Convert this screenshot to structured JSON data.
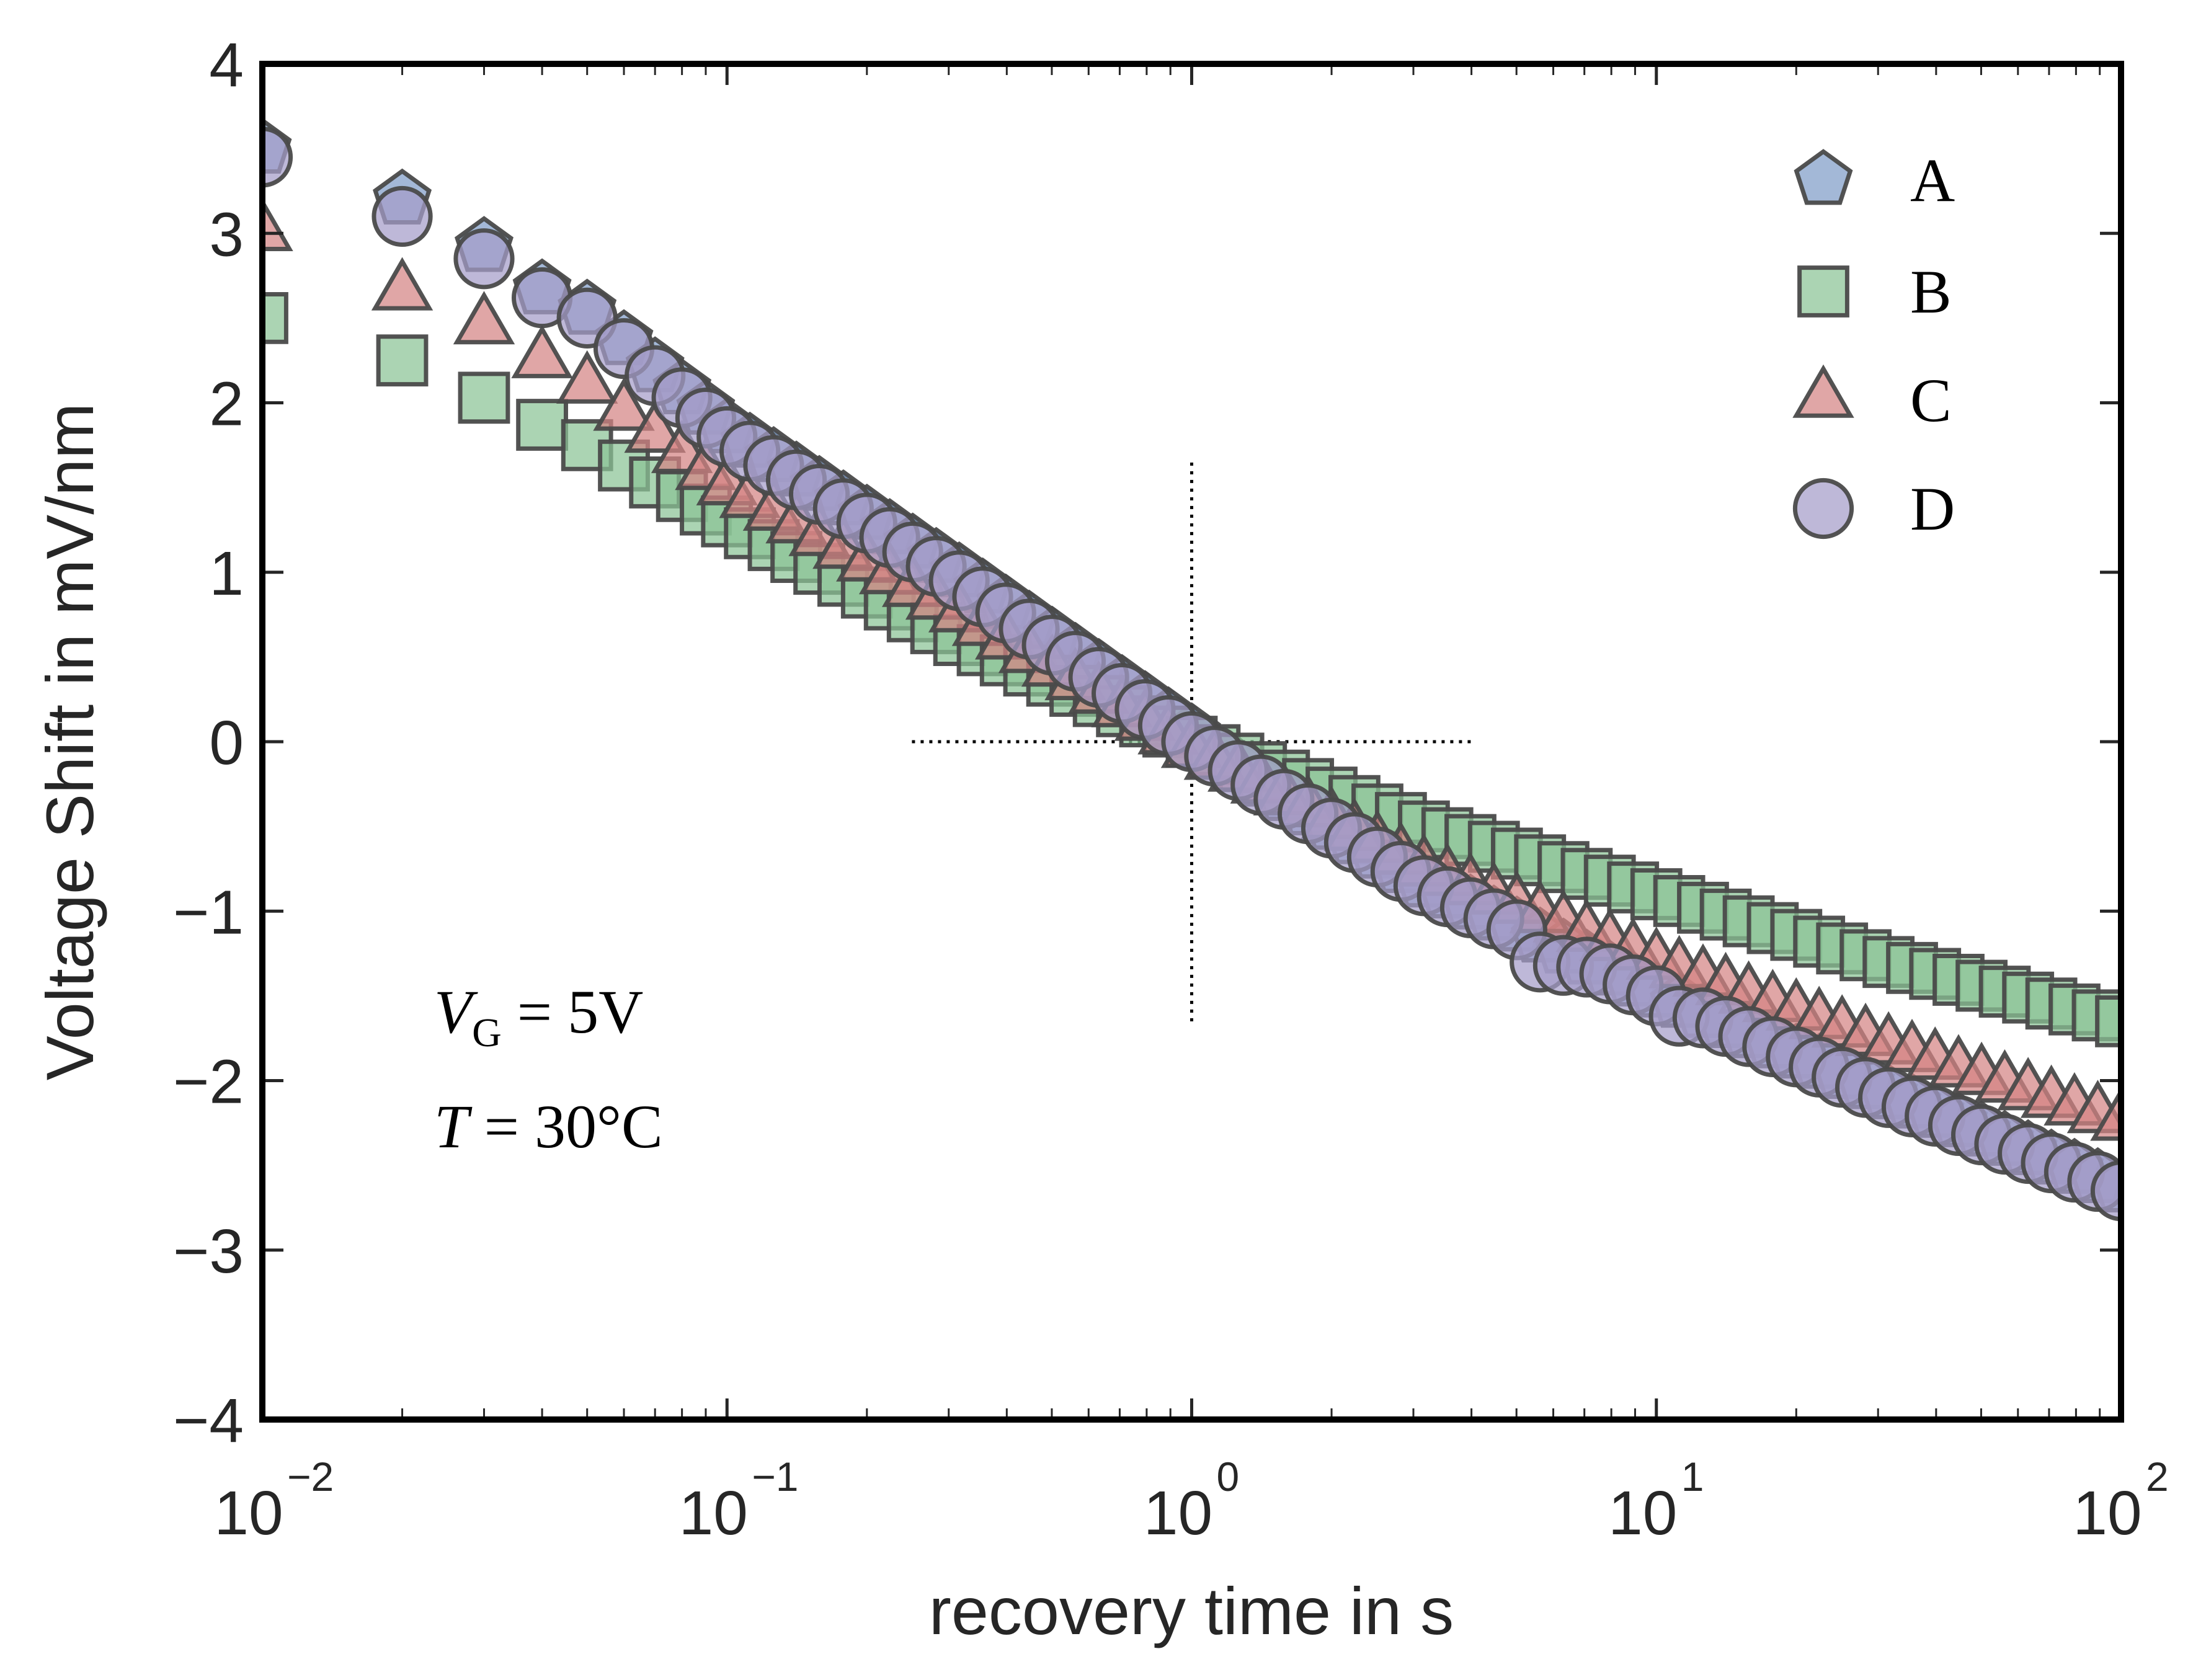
{
  "chart_data": {
    "type": "scatter",
    "title": "",
    "xlabel": "recovery time in s",
    "ylabel": "Voltage Shift in mV/nm",
    "xscale": "log",
    "xlim": [
      0.01,
      100
    ],
    "ylim": [
      -4,
      4
    ],
    "grid": false,
    "x_ticks": [
      {
        "value": 0.01,
        "base": "10",
        "exp": "-2"
      },
      {
        "value": 0.1,
        "base": "10",
        "exp": "-1"
      },
      {
        "value": 1,
        "base": "10",
        "exp": "0"
      },
      {
        "value": 10,
        "base": "10",
        "exp": "1"
      },
      {
        "value": 100,
        "base": "10",
        "exp": "2"
      }
    ],
    "y_ticks": [
      {
        "value": 4,
        "label": "4"
      },
      {
        "value": 3,
        "label": "3"
      },
      {
        "value": 2,
        "label": "2"
      },
      {
        "value": 1,
        "label": "1"
      },
      {
        "value": 0,
        "label": "0"
      },
      {
        "value": -1,
        "label": "−1"
      },
      {
        "value": -2,
        "label": "−2"
      },
      {
        "value": -3,
        "label": "−3"
      },
      {
        "value": -4,
        "label": "−4"
      }
    ],
    "legend": {
      "position": "top-right"
    },
    "annotations": [
      {
        "lines": [
          {
            "var": "V",
            "sub": "G",
            "rest": " = 5V"
          },
          {
            "var": "T",
            "sub": "",
            "rest": " = 30°C"
          }
        ],
        "position": "lower-left"
      }
    ],
    "reference_lines": [
      {
        "orientation": "horizontal",
        "y": 0,
        "x_from": 0.25,
        "x_to": 4,
        "style": "dotted"
      },
      {
        "orientation": "vertical",
        "x": 1,
        "y_from": -1.65,
        "y_to": 1.65,
        "style": "dotted"
      }
    ],
    "x": [
      0.01,
      0.02,
      0.03,
      0.04,
      0.05,
      0.06,
      0.07,
      0.08,
      0.09,
      0.1,
      0.112,
      0.126,
      0.141,
      0.158,
      0.178,
      0.2,
      0.224,
      0.251,
      0.282,
      0.316,
      0.355,
      0.398,
      0.447,
      0.501,
      0.562,
      0.631,
      0.708,
      0.794,
      0.891,
      1,
      1.12,
      1.26,
      1.41,
      1.58,
      1.78,
      2.0,
      2.24,
      2.51,
      2.82,
      3.16,
      3.55,
      3.98,
      4.47,
      5.01,
      5.62,
      6.31,
      7.08,
      7.94,
      8.91,
      10,
      11.2,
      12.6,
      14.1,
      15.8,
      17.8,
      20,
      22.4,
      25.1,
      28.2,
      31.6,
      35.5,
      39.8,
      44.7,
      50.1,
      56.2,
      63.1,
      70.8,
      79.4,
      89.1,
      100
    ],
    "series": [
      {
        "name": "A",
        "marker": "pentagon",
        "color": "#7f9cc8",
        "edge": "#4a4a4a",
        "values": [
          3.5,
          3.2,
          2.92,
          2.67,
          2.55,
          2.37,
          2.21,
          2.08,
          1.96,
          1.85,
          1.765,
          1.68,
          1.595,
          1.51,
          1.425,
          1.34,
          1.255,
          1.17,
          1.085,
          1.0,
          0.905,
          0.81,
          0.715,
          0.62,
          0.525,
          0.43,
          0.335,
          0.24,
          0.145,
          0.05,
          -0.065,
          -0.15,
          -0.235,
          -0.32,
          -0.405,
          -0.49,
          -0.575,
          -0.66,
          -0.745,
          -0.83,
          -0.895,
          -0.96,
          -1.025,
          -1.09,
          -1.155,
          -1.22,
          -1.285,
          -1.35,
          -1.415,
          -1.48,
          -1.54,
          -1.6,
          -1.66,
          -1.72,
          -1.78,
          -1.84,
          -1.9,
          -1.96,
          -2.02,
          -2.08,
          -2.135,
          -2.19,
          -2.245,
          -2.3,
          -2.355,
          -2.41,
          -2.465,
          -2.52,
          -2.575,
          -2.63
        ]
      },
      {
        "name": "B",
        "marker": "square",
        "color": "#8ac496",
        "edge": "#4a4a4a",
        "values": [
          2.5,
          2.25,
          2.03,
          1.87,
          1.75,
          1.63,
          1.53,
          1.45,
          1.37,
          1.3,
          1.23,
          1.16,
          1.09,
          1.02,
          0.95,
          0.88,
          0.81,
          0.74,
          0.67,
          0.6,
          0.54,
          0.48,
          0.42,
          0.36,
          0.3,
          0.24,
          0.18,
          0.12,
          0.06,
          0.0,
          -0.05,
          -0.1,
          -0.15,
          -0.2,
          -0.25,
          -0.3,
          -0.35,
          -0.4,
          -0.45,
          -0.5,
          -0.54,
          -0.58,
          -0.62,
          -0.66,
          -0.7,
          -0.74,
          -0.78,
          -0.82,
          -0.86,
          -0.9,
          -0.94,
          -0.98,
          -1.02,
          -1.06,
          -1.1,
          -1.14,
          -1.18,
          -1.22,
          -1.26,
          -1.3,
          -1.335,
          -1.37,
          -1.405,
          -1.44,
          -1.475,
          -1.51,
          -1.545,
          -1.58,
          -1.615,
          -1.65
        ]
      },
      {
        "name": "C",
        "marker": "triangle",
        "color": "#d48384",
        "edge": "#4a4a4a",
        "values": [
          3.0,
          2.65,
          2.45,
          2.25,
          2.1,
          1.94,
          1.81,
          1.69,
          1.59,
          1.5,
          1.425,
          1.35,
          1.275,
          1.2,
          1.125,
          1.05,
          0.975,
          0.9,
          0.825,
          0.75,
          0.67,
          0.59,
          0.51,
          0.43,
          0.35,
          0.27,
          0.19,
          0.11,
          0.03,
          -0.05,
          -0.12,
          -0.19,
          -0.26,
          -0.33,
          -0.4,
          -0.47,
          -0.54,
          -0.61,
          -0.68,
          -0.75,
          -0.805,
          -0.86,
          -0.915,
          -0.97,
          -1.025,
          -1.08,
          -1.135,
          -1.19,
          -1.245,
          -1.3,
          -1.35,
          -1.4,
          -1.45,
          -1.5,
          -1.55,
          -1.6,
          -1.65,
          -1.7,
          -1.75,
          -1.8,
          -1.845,
          -1.89,
          -1.935,
          -1.98,
          -2.025,
          -2.07,
          -2.115,
          -2.16,
          -2.205,
          -2.25
        ]
      },
      {
        "name": "D",
        "marker": "circle",
        "color": "#a59cc9",
        "edge": "#4a4a4a",
        "values": [
          3.45,
          3.1,
          2.85,
          2.62,
          2.5,
          2.32,
          2.16,
          2.03,
          1.91,
          1.8,
          1.715,
          1.63,
          1.545,
          1.46,
          1.375,
          1.29,
          1.205,
          1.12,
          1.035,
          0.95,
          0.855,
          0.76,
          0.665,
          0.57,
          0.475,
          0.38,
          0.285,
          0.19,
          0.095,
          0.0,
          -0.085,
          -0.17,
          -0.255,
          -0.34,
          -0.425,
          -0.51,
          -0.595,
          -0.68,
          -0.765,
          -0.85,
          -0.915,
          -0.98,
          -1.045,
          -1.11,
          -1.3,
          -1.32,
          -1.33,
          -1.37,
          -1.435,
          -1.5,
          -1.62,
          -1.63,
          -1.68,
          -1.74,
          -1.8,
          -1.86,
          -1.92,
          -1.98,
          -2.04,
          -2.1,
          -2.155,
          -2.21,
          -2.265,
          -2.32,
          -2.375,
          -2.43,
          -2.485,
          -2.54,
          -2.595,
          -2.65
        ]
      }
    ]
  }
}
